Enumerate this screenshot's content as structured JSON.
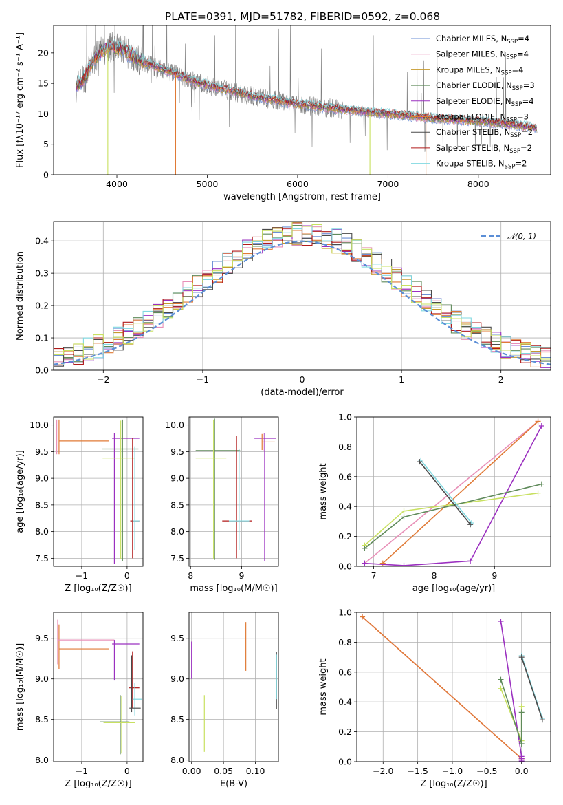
{
  "figure": {
    "title": "PLATE=0391, MJD=51782, FIBERID=0592, z=0.068"
  },
  "chart_data": [
    {
      "id": "spectrum",
      "type": "line",
      "xlabel": "wavelength [Angstrom, rest frame]",
      "ylabel": "Flux [fλ10⁻¹⁷ erg cm⁻² s⁻¹ A⁻¹]",
      "xlim": [
        3300,
        8800
      ],
      "ylim": [
        0,
        24.5
      ],
      "xticks": [
        4000,
        5000,
        6000,
        7000,
        8000
      ],
      "yticks": [
        0,
        5,
        10,
        15,
        20
      ],
      "grid": false,
      "legend_position": "top-right",
      "observed_spectrum": {
        "color": "#808080",
        "x_range": [
          3550,
          8650
        ]
      },
      "continuum_shape": {
        "x": [
          3550,
          3650,
          3750,
          3850,
          3950,
          4050,
          4200,
          4400,
          4600,
          4800,
          5000,
          5300,
          5600,
          6000,
          6500,
          7000,
          7500,
          8000,
          8400,
          8650
        ],
        "y": [
          14.5,
          16.0,
          19.0,
          20.5,
          21.0,
          20.5,
          19.3,
          17.8,
          16.8,
          15.6,
          14.7,
          13.6,
          12.6,
          11.6,
          10.7,
          10.0,
          9.3,
          8.8,
          8.2,
          7.7
        ]
      },
      "series": [
        {
          "name": "Chabrier MILES, N$_{SSP}$=4",
          "label_main": "Chabrier MILES, N",
          "label_sub": "SSP",
          "label_tail": "=4",
          "color": "#6b8fd6"
        },
        {
          "name": "Salpeter MILES, N$_{SSP}$=4",
          "label_main": "Salpeter MILES, N",
          "label_sub": "SSP",
          "label_tail": "=4",
          "color": "#e890b8"
        },
        {
          "name": "Kroupa MILES, N$_{SSP}$=4",
          "label_main": "Kroupa MILES, N",
          "label_sub": "SSP",
          "label_tail": "=4",
          "color": "#c69a2c"
        },
        {
          "name": "Chabrier ELODIE, N$_{SSP}$=3",
          "label_main": "Chabrier ELODIE, N",
          "label_sub": "SSP",
          "label_tail": "=3",
          "color": "#5f8a5a"
        },
        {
          "name": "Salpeter ELODIE, N$_{SSP}$=4",
          "label_main": "Salpeter ELODIE, N",
          "label_sub": "SSP",
          "label_tail": "=4",
          "color": "#9b30c0"
        },
        {
          "name": "Kroupa ELODIE, N$_{SSP}$=3",
          "label_main": "Kroupa ELODIE, N",
          "label_sub": "SSP",
          "label_tail": "=3",
          "color": "#e07a36"
        },
        {
          "name": "Chabrier STELIB, N$_{SSP}$=2",
          "label_main": "Chabrier STELIB, N",
          "label_sub": "SSP",
          "label_tail": "=2",
          "color": "#4a4a4a"
        },
        {
          "name": "Salpeter STELIB, N$_{SSP}$=2",
          "label_main": "Salpeter STELIB, N",
          "label_sub": "SSP",
          "label_tail": "=2",
          "color": "#b01a1a"
        },
        {
          "name": "Kroupa STELIB, N$_{SSP}$=2",
          "label_main": "Kroupa STELIB, N",
          "label_sub": "SSP",
          "label_tail": "=2",
          "color": "#80d8e0"
        }
      ],
      "drops": [
        {
          "x": 3900,
          "color": "#c8e060"
        },
        {
          "x": 4650,
          "color": "#e07a36"
        },
        {
          "x": 6800,
          "color": "#c8e060"
        },
        {
          "x": 7420,
          "color": "#e07a36"
        }
      ]
    },
    {
      "id": "residuals",
      "type": "line",
      "xlabel": "(data-model)/error",
      "ylabel": "Normed distribution",
      "xlim": [
        -2.5,
        2.5
      ],
      "ylim": [
        0,
        0.46
      ],
      "xticks": [
        -2,
        -1,
        0,
        1,
        2
      ],
      "yticks": [
        0.0,
        0.1,
        0.2,
        0.3,
        0.4
      ],
      "grid": true,
      "legend_position": "top-right",
      "normal_curve": {
        "name": "$\\mathcal{N}(0,1)$",
        "label": "𝒩(0, 1)",
        "color": "#5b8ed6",
        "style": "dashed"
      },
      "bin_width": 0.1,
      "hist_colors": [
        "#6b8fd6",
        "#e890b8",
        "#c69a2c",
        "#5f8a5a",
        "#9b30c0",
        "#e07a36",
        "#4a4a4a",
        "#b01a1a",
        "#80d8e0",
        "#c8e060"
      ]
    },
    {
      "id": "age-vs-Z",
      "type": "scatter",
      "xlabel": "Z [log₁₀(Z/Z☉)]",
      "ylabel": "age  [log₁₀(age/yr)]",
      "xlim": [
        -1.62,
        0.35
      ],
      "ylim": [
        7.35,
        10.15
      ],
      "xticks": [
        -1,
        0
      ],
      "yticks": [
        7.5,
        8.0,
        8.5,
        9.0,
        9.5,
        10.0
      ],
      "grid": true,
      "crosses": [
        {
          "x": -1.5,
          "y": 9.7,
          "xerr": [
            0,
            1.1
          ],
          "yerr": [
            0.25,
            0.4
          ],
          "color": "#e07a36"
        },
        {
          "x": -1.55,
          "y": 9.75,
          "xerr": [
            0,
            0
          ],
          "yerr": [
            0.3,
            0.35
          ],
          "color": "#e890b8"
        },
        {
          "x": -0.28,
          "y": 9.75,
          "xerr": [
            0.05,
            0.55
          ],
          "yerr": [
            2.35,
            0.1
          ],
          "color": "#9b30c0"
        },
        {
          "x": -0.1,
          "y": 9.55,
          "xerr": [
            0.45,
            0.35
          ],
          "yerr": [
            2.1,
            0.55
          ],
          "color": "#5f8a5a"
        },
        {
          "x": -0.14,
          "y": 9.38,
          "xerr": [
            0.4,
            0.3
          ],
          "yerr": [
            1.9,
            0.7
          ],
          "color": "#c8e060"
        },
        {
          "x": 0.12,
          "y": 8.2,
          "xerr": [
            0.05,
            0.15
          ],
          "yerr": [
            0.7,
            1.55
          ],
          "color": "#b01a1a"
        },
        {
          "x": 0.17,
          "y": 8.2,
          "xerr": [
            0.05,
            0.1
          ],
          "yerr": [
            0.55,
            1.4
          ],
          "color": "#80d8e0"
        }
      ]
    },
    {
      "id": "age-vs-mass",
      "type": "scatter",
      "xlabel": "mass [log₁₀(M/M☉)]",
      "ylabel": "",
      "xlim": [
        7.97,
        9.72
      ],
      "ylim": [
        7.35,
        10.15
      ],
      "xticks": [
        8,
        9
      ],
      "yticks": [
        7.5,
        8.0,
        8.5,
        9.0,
        9.5,
        10.0
      ],
      "grid": true,
      "crosses": [
        {
          "x": 8.47,
          "y": 9.52,
          "xerr": [
            0.37,
            0.5
          ],
          "yerr": [
            2.05,
            0.6
          ],
          "color": "#5f8a5a"
        },
        {
          "x": 8.45,
          "y": 9.38,
          "xerr": [
            0.35,
            0.25
          ],
          "yerr": [
            1.9,
            0.72
          ],
          "color": "#c8e060"
        },
        {
          "x": 8.9,
          "y": 8.2,
          "xerr": [
            0.28,
            0.3
          ],
          "yerr": [
            0.7,
            1.6
          ],
          "color": "#b01a1a"
        },
        {
          "x": 8.95,
          "y": 8.2,
          "xerr": [
            0.2,
            0.2
          ],
          "yerr": [
            0.55,
            1.35
          ],
          "color": "#80d8e0"
        },
        {
          "x": 9.45,
          "y": 9.75,
          "xerr": [
            0.2,
            0.22
          ],
          "yerr": [
            2.3,
            0.1
          ],
          "color": "#9b30c0"
        },
        {
          "x": 9.4,
          "y": 9.68,
          "xerr": [
            0.0,
            0.25
          ],
          "yerr": [
            0.15,
            0.15
          ],
          "color": "#e07a36"
        },
        {
          "x": 9.42,
          "y": 9.7,
          "xerr": [
            0.0,
            0.0
          ],
          "yerr": [
            0.2,
            0.15
          ],
          "color": "#e890b8"
        }
      ]
    },
    {
      "id": "weight-vs-age",
      "type": "line",
      "xlabel": "age  [log₁₀(age/yr)]",
      "ylabel": "mass weight",
      "xlim": [
        6.72,
        9.93
      ],
      "ylim": [
        0,
        1.0
      ],
      "xticks": [
        7,
        8,
        9
      ],
      "yticks": [
        0.0,
        0.2,
        0.4,
        0.6,
        0.8,
        1.0
      ],
      "grid": true,
      "series": [
        {
          "color": "#e890b8",
          "x": [
            6.85,
            9.72
          ],
          "y": [
            0.02,
            0.97
          ]
        },
        {
          "color": "#e07a36",
          "x": [
            7.15,
            9.72
          ],
          "y": [
            0.02,
            0.97
          ]
        },
        {
          "color": "#9b30c0",
          "x": [
            6.85,
            7.5,
            8.6,
            9.78
          ],
          "y": [
            0.02,
            0.005,
            0.035,
            0.94
          ]
        },
        {
          "color": "#c8e060",
          "x": [
            6.85,
            7.5,
            9.72
          ],
          "y": [
            0.14,
            0.37,
            0.49
          ]
        },
        {
          "color": "#5f8a5a",
          "x": [
            6.85,
            7.5,
            9.78
          ],
          "y": [
            0.12,
            0.33,
            0.55
          ]
        },
        {
          "color": "#80d8e0",
          "x": [
            7.78,
            8.62
          ],
          "y": [
            0.71,
            0.29
          ]
        },
        {
          "color": "#4a4a4a",
          "x": [
            7.76,
            8.6
          ],
          "y": [
            0.7,
            0.28
          ]
        }
      ]
    },
    {
      "id": "mass-vs-Z",
      "type": "scatter",
      "xlabel": "Z [log₁₀(Z/Z☉)]",
      "ylabel": "mass [log₁₀(M/M☉)]",
      "xlim": [
        -1.62,
        0.35
      ],
      "ylim": [
        7.98,
        9.82
      ],
      "xticks": [
        -1,
        0
      ],
      "yticks": [
        8.0,
        8.5,
        9.0,
        9.5
      ],
      "grid": true,
      "crosses": [
        {
          "x": -1.5,
          "y": 9.37,
          "xerr": [
            0,
            1.1
          ],
          "yerr": [
            0.25,
            0.3
          ],
          "color": "#e07a36"
        },
        {
          "x": -1.53,
          "y": 9.48,
          "xerr": [
            0,
            1.25
          ],
          "yerr": [
            0.3,
            0.25
          ],
          "color": "#e890b8"
        },
        {
          "x": -0.28,
          "y": 9.43,
          "xerr": [
            0.05,
            0.55
          ],
          "yerr": [
            0.45,
            0.05
          ],
          "color": "#9b30c0"
        },
        {
          "x": 0.12,
          "y": 8.89,
          "xerr": [
            0.08,
            0.15
          ],
          "yerr": [
            0.25,
            0.45
          ],
          "color": "#b01a1a"
        },
        {
          "x": 0.17,
          "y": 8.75,
          "xerr": [
            0.05,
            0.15
          ],
          "yerr": [
            0.2,
            0.2
          ],
          "color": "#80d8e0"
        },
        {
          "x": 0.1,
          "y": 8.64,
          "xerr": [
            0.05,
            0.2
          ],
          "yerr": [
            0.05,
            0.65
          ],
          "color": "#4a4a4a"
        },
        {
          "x": -0.15,
          "y": 8.47,
          "xerr": [
            0.45,
            0.2
          ],
          "yerr": [
            0.4,
            0.33
          ],
          "color": "#5f8a5a"
        },
        {
          "x": -0.12,
          "y": 8.46,
          "xerr": [
            0.4,
            0.3
          ],
          "yerr": [
            0.38,
            0.33
          ],
          "color": "#c8e060"
        }
      ]
    },
    {
      "id": "mass-vs-EBV",
      "type": "scatter",
      "xlabel": "E(B-V)",
      "ylabel": "",
      "xlim": [
        -0.004,
        0.136
      ],
      "ylim": [
        7.98,
        9.82
      ],
      "xticks": [
        0.0,
        0.05,
        0.1
      ],
      "yticks": [
        8.0,
        8.5,
        9.0,
        9.5
      ],
      "grid": true,
      "crosses": [
        {
          "x": 0.0,
          "y": 9.2,
          "xerr": [
            0,
            0
          ],
          "yerr": [
            0.2,
            0.26
          ],
          "color": "#9b30c0"
        },
        {
          "x": 0.02,
          "y": 8.45,
          "xerr": [
            0,
            0
          ],
          "yerr": [
            0.35,
            0.35
          ],
          "color": "#c8e060"
        },
        {
          "x": 0.085,
          "y": 9.4,
          "xerr": [
            0,
            0
          ],
          "yerr": [
            0.3,
            0.3
          ],
          "color": "#e07a36"
        },
        {
          "x": 0.133,
          "y": 9.0,
          "xerr": [
            0,
            0
          ],
          "yerr": [
            0.37,
            0.33
          ],
          "color": "#4a4a4a"
        },
        {
          "x": 0.133,
          "y": 9.05,
          "xerr": [
            0,
            0
          ],
          "yerr": [
            0.3,
            0.25
          ],
          "color": "#80d8e0"
        }
      ]
    },
    {
      "id": "weight-vs-Z",
      "type": "line",
      "xlabel": "Z [log₁₀(Z/Z☉)]",
      "ylabel": "mass weight",
      "xlim": [
        -2.38,
        0.42
      ],
      "ylim": [
        0,
        1.0
      ],
      "xticks": [
        -2.0,
        -1.5,
        -1.0,
        -0.5,
        0.0
      ],
      "yticks": [
        0.0,
        0.2,
        0.4,
        0.6,
        0.8,
        1.0
      ],
      "grid": true,
      "series": [
        {
          "color": "#e890b8",
          "x": [
            -2.3,
            0.0
          ],
          "y": [
            0.97,
            0.02
          ]
        },
        {
          "color": "#e07a36",
          "x": [
            -2.3,
            0.0
          ],
          "y": [
            0.97,
            0.02
          ]
        },
        {
          "color": "#9b30c0",
          "x": [
            -0.3,
            0.0,
            0.0,
            0.0
          ],
          "y": [
            0.94,
            0.035,
            0.005,
            0.02
          ]
        },
        {
          "color": "#c8e060",
          "x": [
            -0.3,
            0.0,
            0.0
          ],
          "y": [
            0.49,
            0.14,
            0.37
          ]
        },
        {
          "color": "#5f8a5a",
          "x": [
            -0.3,
            0.0,
            0.0
          ],
          "y": [
            0.55,
            0.12,
            0.33
          ]
        },
        {
          "color": "#80d8e0",
          "x": [
            0.0,
            0.3
          ],
          "y": [
            0.71,
            0.29
          ]
        },
        {
          "color": "#4a4a4a",
          "x": [
            0.0,
            0.3
          ],
          "y": [
            0.7,
            0.28
          ]
        }
      ]
    }
  ]
}
